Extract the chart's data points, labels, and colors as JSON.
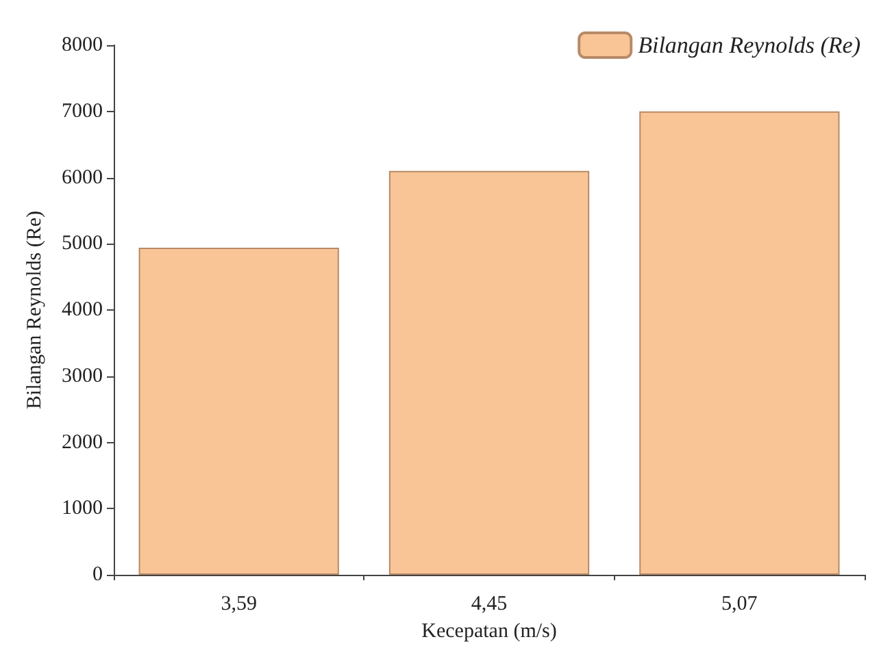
{
  "chart_data": {
    "type": "bar",
    "xlabel": "Kecepatan (m/s)",
    "ylabel": "Bilangan Reynolds (Re)",
    "categories": [
      "3,59",
      "4,45",
      "5,07"
    ],
    "series": [
      {
        "name": "Bilangan Reynolds (Re)",
        "color": "#f9c597",
        "values": [
          4940,
          6100,
          7000
        ]
      }
    ],
    "ylim": [
      0,
      8000
    ],
    "yticks": [
      0,
      1000,
      2000,
      3000,
      4000,
      5000,
      6000,
      7000,
      8000
    ],
    "grid": false,
    "legend": "top right"
  }
}
